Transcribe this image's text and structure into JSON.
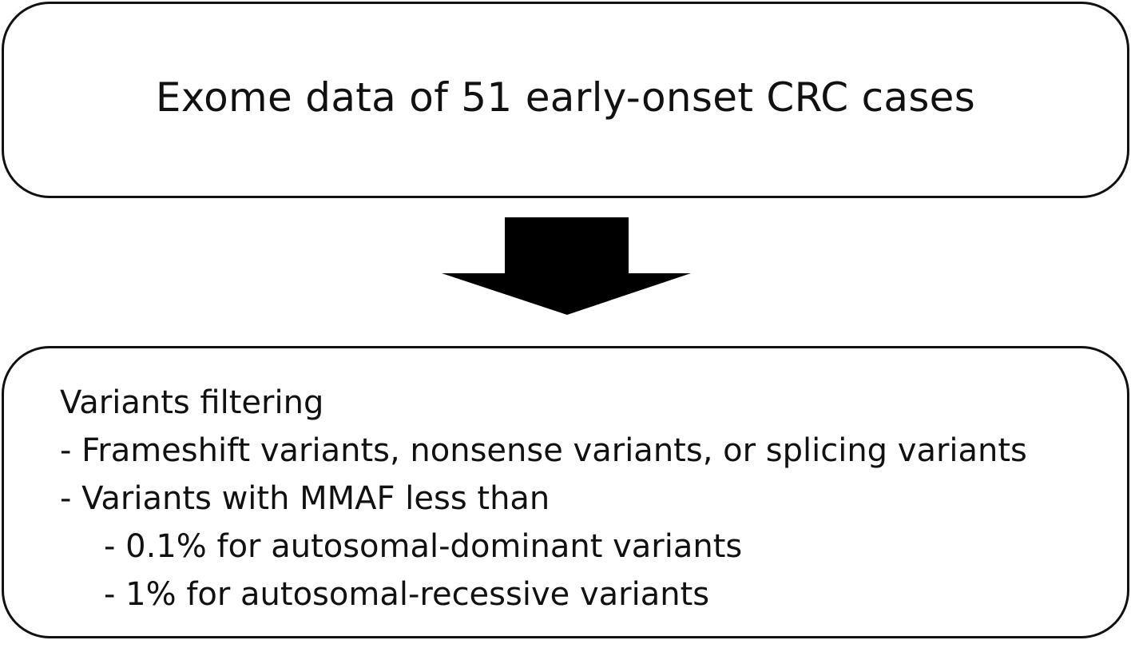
{
  "top_box": {
    "text": "Exome data of 51 early-onset CRC cases"
  },
  "arrow": {
    "icon": "down-arrow-icon",
    "color": "#000000"
  },
  "bottom_box": {
    "lines": [
      "Variants filtering",
      "- Frameshift variants, nonsense variants, or splicing variants",
      "- Variants with MMAF less than",
      "- 0.1% for autosomal-dominant variants",
      "- 1% for autosomal-recessive variants"
    ]
  }
}
